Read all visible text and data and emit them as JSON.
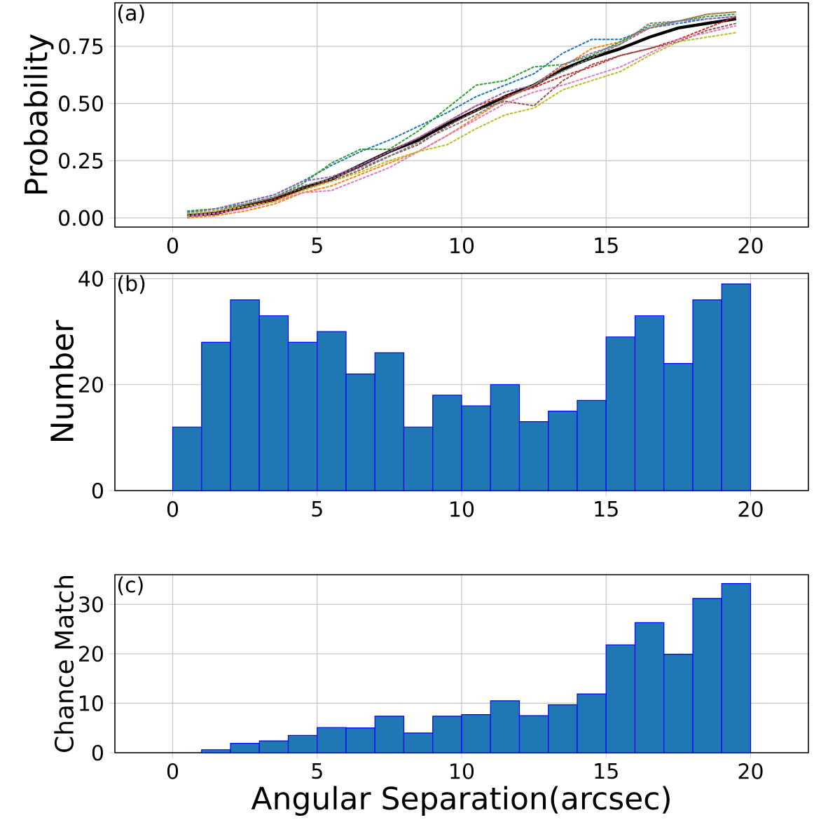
{
  "chart_data": [
    {
      "type": "line",
      "ylabel": "Probability",
      "annotations": [
        "(a)"
      ],
      "grid": true,
      "x": [
        0.5,
        1.5,
        2.5,
        3.5,
        4.5,
        5.5,
        6.5,
        7.5,
        8.5,
        9.5,
        10.5,
        11.5,
        12.5,
        13.5,
        14.5,
        15.5,
        16.5,
        17.5,
        18.5,
        19.5
      ],
      "xlim": [
        -2,
        22
      ],
      "xticks": [
        0,
        5,
        10,
        15,
        20
      ],
      "ylim": [
        -0.04,
        0.94
      ],
      "yticks": [
        {
          "value": 0,
          "label": "0.00"
        },
        {
          "value": 0.25,
          "label": "0.25"
        },
        {
          "value": 0.5,
          "label": "0.50"
        },
        {
          "value": 0.75,
          "label": "0.75"
        }
      ],
      "series": [
        {
          "color": "#1f77b4",
          "line_style": "dashed",
          "values": [
            0.025,
            0.04,
            0.07,
            0.1,
            0.16,
            0.23,
            0.29,
            0.34,
            0.4,
            0.46,
            0.53,
            0.58,
            0.63,
            0.72,
            0.78,
            0.78,
            0.83,
            0.85,
            0.87,
            0.88
          ]
        },
        {
          "color": "#ff7f0e",
          "line_style": "dashed",
          "values": [
            0,
            0.01,
            0.03,
            0.06,
            0.11,
            0.14,
            0.19,
            0.24,
            0.29,
            0.36,
            0.44,
            0.52,
            0.58,
            0.66,
            0.74,
            0.77,
            0.83,
            0.86,
            0.89,
            0.9
          ]
        },
        {
          "color": "#2ca02c",
          "line_style": "dashed",
          "values": [
            0.03,
            0.04,
            0.06,
            0.09,
            0.15,
            0.24,
            0.3,
            0.3,
            0.38,
            0.48,
            0.58,
            0.6,
            0.66,
            0.67,
            0.71,
            0.77,
            0.84,
            0.86,
            0.88,
            0.89
          ]
        },
        {
          "color": "#d62728",
          "line_style": "dashed",
          "values": [
            0.01,
            0.02,
            0.05,
            0.08,
            0.12,
            0.17,
            0.23,
            0.29,
            0.35,
            0.42,
            0.49,
            0.53,
            0.57,
            0.62,
            0.66,
            0.71,
            0.74,
            0.78,
            0.83,
            0.88
          ]
        },
        {
          "color": "#9467bd",
          "line_style": "dashed",
          "values": [
            0.02,
            0.04,
            0.07,
            0.1,
            0.16,
            0.18,
            0.23,
            0.29,
            0.35,
            0.42,
            0.49,
            0.55,
            0.58,
            0.67,
            0.72,
            0.76,
            0.83,
            0.86,
            0.87,
            0.88
          ]
        },
        {
          "color": "#8c564b",
          "line_style": "dashed",
          "values": [
            0.01,
            0.03,
            0.06,
            0.09,
            0.13,
            0.16,
            0.21,
            0.27,
            0.32,
            0.4,
            0.47,
            0.51,
            0.49,
            0.6,
            0.67,
            0.71,
            0.74,
            0.77,
            0.82,
            0.85
          ]
        },
        {
          "color": "#e377c2",
          "line_style": "dashed",
          "values": [
            0.005,
            0.02,
            0.04,
            0.07,
            0.11,
            0.12,
            0.17,
            0.22,
            0.29,
            0.36,
            0.43,
            0.5,
            0.55,
            0.58,
            0.62,
            0.66,
            0.72,
            0.78,
            0.81,
            0.84
          ]
        },
        {
          "color": "#7f7f7f",
          "line_style": "dashed",
          "values": [
            0.01,
            0.03,
            0.06,
            0.09,
            0.14,
            0.17,
            0.22,
            0.27,
            0.33,
            0.39,
            0.45,
            0.52,
            0.58,
            0.64,
            0.7,
            0.76,
            0.85,
            0.86,
            0.89,
            0.9
          ]
        },
        {
          "color": "#bcbd22",
          "line_style": "dashed",
          "values": [
            0.02,
            0.03,
            0.05,
            0.07,
            0.12,
            0.16,
            0.2,
            0.25,
            0.29,
            0.32,
            0.39,
            0.45,
            0.48,
            0.56,
            0.6,
            0.64,
            0.71,
            0.77,
            0.79,
            0.81
          ]
        },
        {
          "color": "#000000",
          "line_style": "solid",
          "values": [
            0.01,
            0.02,
            0.05,
            0.08,
            0.13,
            0.17,
            0.23,
            0.29,
            0.34,
            0.41,
            0.47,
            0.53,
            0.58,
            0.65,
            0.7,
            0.74,
            0.79,
            0.83,
            0.85,
            0.87
          ]
        }
      ]
    },
    {
      "type": "histogram",
      "ylabel": "Number",
      "annotations": [
        "(b)"
      ],
      "grid": true,
      "color": "#1f77b4",
      "bins": [
        0,
        1,
        2,
        3,
        4,
        5,
        6,
        7,
        8,
        9,
        10,
        11,
        12,
        13,
        14,
        15,
        16,
        17,
        18,
        19,
        20
      ],
      "values": [
        12,
        28,
        36,
        33,
        28,
        30,
        22,
        26,
        12,
        18,
        16,
        20,
        13,
        15,
        17,
        29,
        33,
        24,
        36,
        39
      ],
      "xlim": [
        -2,
        22
      ],
      "xticks": [
        0,
        5,
        10,
        15,
        20
      ],
      "ylim": [
        0,
        41
      ],
      "yticks": [
        0,
        20,
        40
      ]
    },
    {
      "type": "histogram",
      "ylabel": "Chance Match",
      "xlabel": "Angular Separation(arcsec)",
      "annotations": [
        "(c)"
      ],
      "grid": true,
      "color": "#1f77b4",
      "bins": [
        0,
        1,
        2,
        3,
        4,
        5,
        6,
        7,
        8,
        9,
        10,
        11,
        12,
        13,
        14,
        15,
        16,
        17,
        18,
        19,
        20
      ],
      "values": [
        0,
        0.6,
        1.9,
        2.4,
        3.5,
        5.1,
        5.0,
        7.4,
        4.0,
        7.4,
        7.7,
        10.5,
        7.5,
        9.7,
        11.9,
        21.8,
        26.3,
        19.9,
        31.2,
        34.2
      ],
      "xlim": [
        -2,
        22
      ],
      "xticks": [
        0,
        5,
        10,
        15,
        20
      ],
      "ylim": [
        0,
        36
      ],
      "yticks": [
        0,
        10,
        20,
        30
      ]
    }
  ]
}
